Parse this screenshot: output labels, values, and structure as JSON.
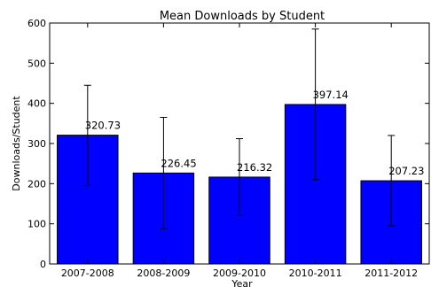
{
  "chart_data": {
    "type": "bar",
    "title": "Mean Downloads by Student",
    "xlabel": "Year",
    "ylabel": "Downloads/Student",
    "categories": [
      "2007-2008",
      "2008-2009",
      "2009-2010",
      "2010-2011",
      "2011-2012"
    ],
    "values": [
      320.73,
      226.45,
      216.32,
      397.14,
      207.23
    ],
    "value_labels": [
      "320.73",
      "226.45",
      "216.32",
      "397.14",
      "207.23"
    ],
    "error_low": [
      195,
      88,
      120,
      210,
      95
    ],
    "error_high": [
      445,
      365,
      312,
      585,
      320
    ],
    "ylim": [
      0,
      600
    ],
    "yticks": [
      0,
      100,
      200,
      300,
      400,
      500,
      600
    ],
    "grid": false,
    "legend": "none",
    "bar_color": "#0000ff",
    "edge_color": "#000000"
  }
}
